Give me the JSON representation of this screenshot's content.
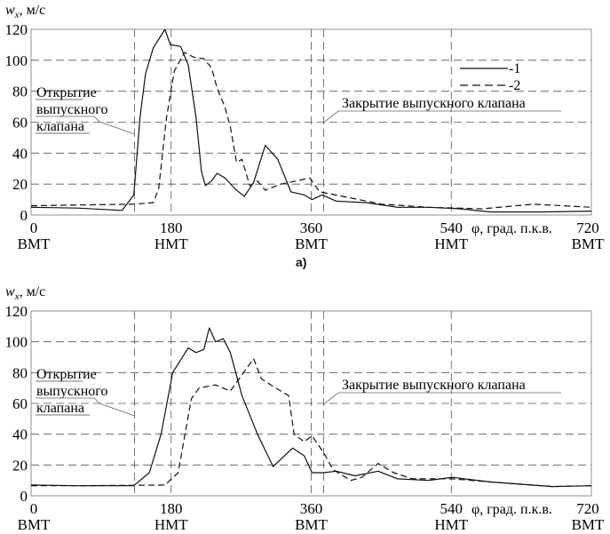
{
  "caption_a": "а)",
  "chart_data": [
    {
      "type": "line",
      "panel": "a",
      "ylabel": "w",
      "ylabel_sub": "x",
      "ylabel_unit": ", м/с",
      "xlabel": "φ, град. п.к.в.",
      "xlim": [
        0,
        720
      ],
      "ylim": [
        0,
        120
      ],
      "xticks": [
        0,
        180,
        360,
        540,
        720
      ],
      "xtick_names": [
        "ВМТ",
        "НМТ",
        "ВМТ",
        "НМТ",
        "ВМТ"
      ],
      "yticks": [
        0,
        20,
        40,
        60,
        80,
        100,
        120
      ],
      "grid": true,
      "valve_open_deg": 133,
      "valve_close_deg": 376,
      "annotation_open": [
        "Открытие",
        "выпускного",
        "клапана"
      ],
      "annotation_close": "Закрытие выпускного клапана",
      "legend": [
        "-1",
        "-2"
      ],
      "legend_position": "top-right",
      "series": [
        {
          "name": "1",
          "style": "solid",
          "x": [
            0,
            60,
            117,
            132,
            140,
            147,
            157,
            167,
            172,
            179,
            192,
            202,
            212,
            219,
            224,
            232,
            239,
            249,
            262,
            274,
            286,
            301,
            317,
            334,
            351,
            361,
            374,
            392,
            431,
            471,
            511,
            551,
            590,
            660,
            720
          ],
          "y": [
            5,
            4.5,
            3,
            13,
            63,
            91,
            108,
            116,
            120,
            110,
            109,
            97,
            63,
            28,
            19,
            22,
            27,
            24,
            17,
            12,
            21,
            45,
            36,
            15,
            13,
            10,
            13,
            9,
            8,
            5,
            5,
            4,
            2,
            2,
            2.5
          ]
        },
        {
          "name": "2",
          "style": "dashed",
          "x": [
            0,
            60,
            130,
            157,
            164,
            174,
            184,
            197,
            209,
            222,
            232,
            239,
            249,
            256,
            264,
            271,
            281,
            291,
            301,
            321,
            341,
            358,
            371,
            401,
            451,
            511,
            580,
            645,
            720
          ],
          "y": [
            6,
            6.5,
            7,
            8,
            17,
            63,
            93,
            105,
            102,
            101,
            95,
            82,
            70,
            57,
            34,
            36,
            19,
            22,
            16,
            20,
            22,
            24,
            15,
            12,
            7,
            5,
            4,
            7,
            5
          ]
        }
      ]
    },
    {
      "type": "line",
      "panel": "b",
      "ylabel": "w",
      "ylabel_sub": "x",
      "ylabel_unit": ", м/с",
      "xlabel": "φ, град. п.к.в.",
      "xlim": [
        0,
        720
      ],
      "ylim": [
        0,
        120
      ],
      "xticks": [
        0,
        180,
        360,
        540,
        720
      ],
      "xtick_names": [
        "ВМТ",
        "НМТ",
        "ВМТ",
        "НМТ",
        "ВМТ"
      ],
      "yticks": [
        0,
        20,
        40,
        60,
        80,
        100,
        120
      ],
      "grid": true,
      "valve_open_deg": 133,
      "valve_close_deg": 376,
      "annotation_open": [
        "Открытие",
        "выпускного",
        "клапана"
      ],
      "annotation_close": "Закрытие выпускного клапана",
      "series": [
        {
          "name": "1",
          "style": "solid",
          "x": [
            0,
            60,
            132,
            152,
            167,
            182,
            202,
            212,
            222,
            229,
            237,
            247,
            256,
            271,
            291,
            311,
            336,
            351,
            361,
            376,
            392,
            416,
            446,
            471,
            511,
            541,
            590,
            670,
            720
          ],
          "y": [
            7,
            6.5,
            6.6,
            15,
            40,
            80,
            96,
            93,
            95,
            109,
            100,
            102,
            93,
            65,
            40,
            19,
            31,
            26,
            15,
            15,
            16,
            13,
            16,
            11,
            10,
            12,
            9,
            6,
            6.5
          ]
        },
        {
          "name": "2",
          "style": "dashed",
          "x": [
            0,
            60,
            172,
            189,
            206,
            216,
            237,
            256,
            266,
            286,
            296,
            311,
            331,
            338,
            351,
            361,
            376,
            388,
            411,
            425,
            446,
            466,
            490,
            541,
            590,
            670,
            720
          ],
          "y": [
            6.5,
            6.5,
            7,
            15,
            63,
            70,
            72,
            68,
            75,
            89,
            76,
            71,
            65,
            40,
            35,
            39,
            28,
            17,
            10,
            12,
            21,
            15,
            11,
            11,
            9,
            6,
            6.5
          ]
        }
      ]
    }
  ]
}
